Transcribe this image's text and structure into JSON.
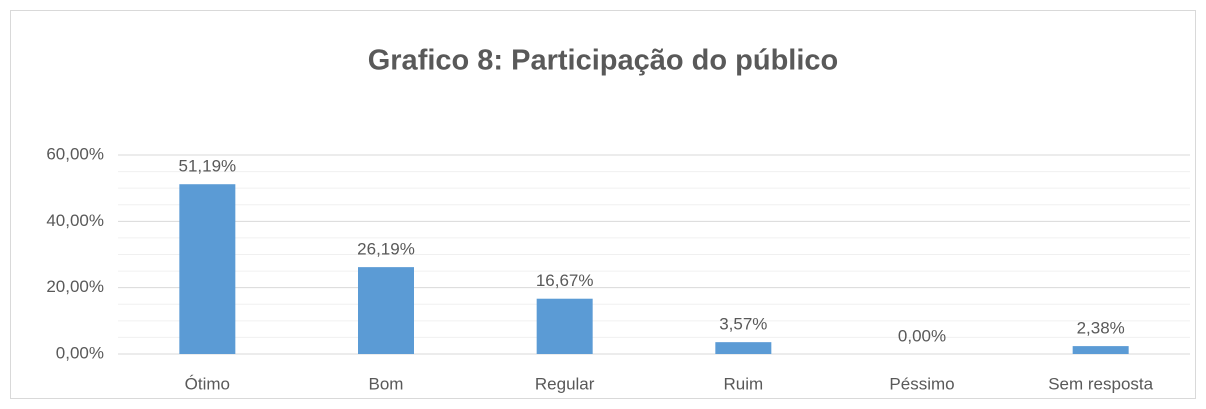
{
  "chart_data": {
    "type": "bar",
    "title": "Grafico 8: Participação do público",
    "categories": [
      "Ótimo",
      "Bom",
      "Regular",
      "Ruim",
      "Péssimo",
      "Sem resposta"
    ],
    "values": [
      51.19,
      26.19,
      16.67,
      3.57,
      0,
      2.38
    ],
    "value_labels": [
      "51,19%",
      "26,19%",
      "16,67%",
      "3,57%",
      "0,00%",
      "2,38%"
    ],
    "color": "#5b9bd5",
    "ylim": [
      0,
      60
    ],
    "yticks": [
      {
        "value": 0,
        "label": "0,00%"
      },
      {
        "value": 20,
        "label": "20,00%"
      },
      {
        "value": 40,
        "label": "40,00%"
      },
      {
        "value": 60,
        "label": "60,00%"
      }
    ],
    "yminorticks": [
      5,
      10,
      15,
      25,
      30,
      35,
      45,
      50,
      55
    ],
    "grid": true
  }
}
